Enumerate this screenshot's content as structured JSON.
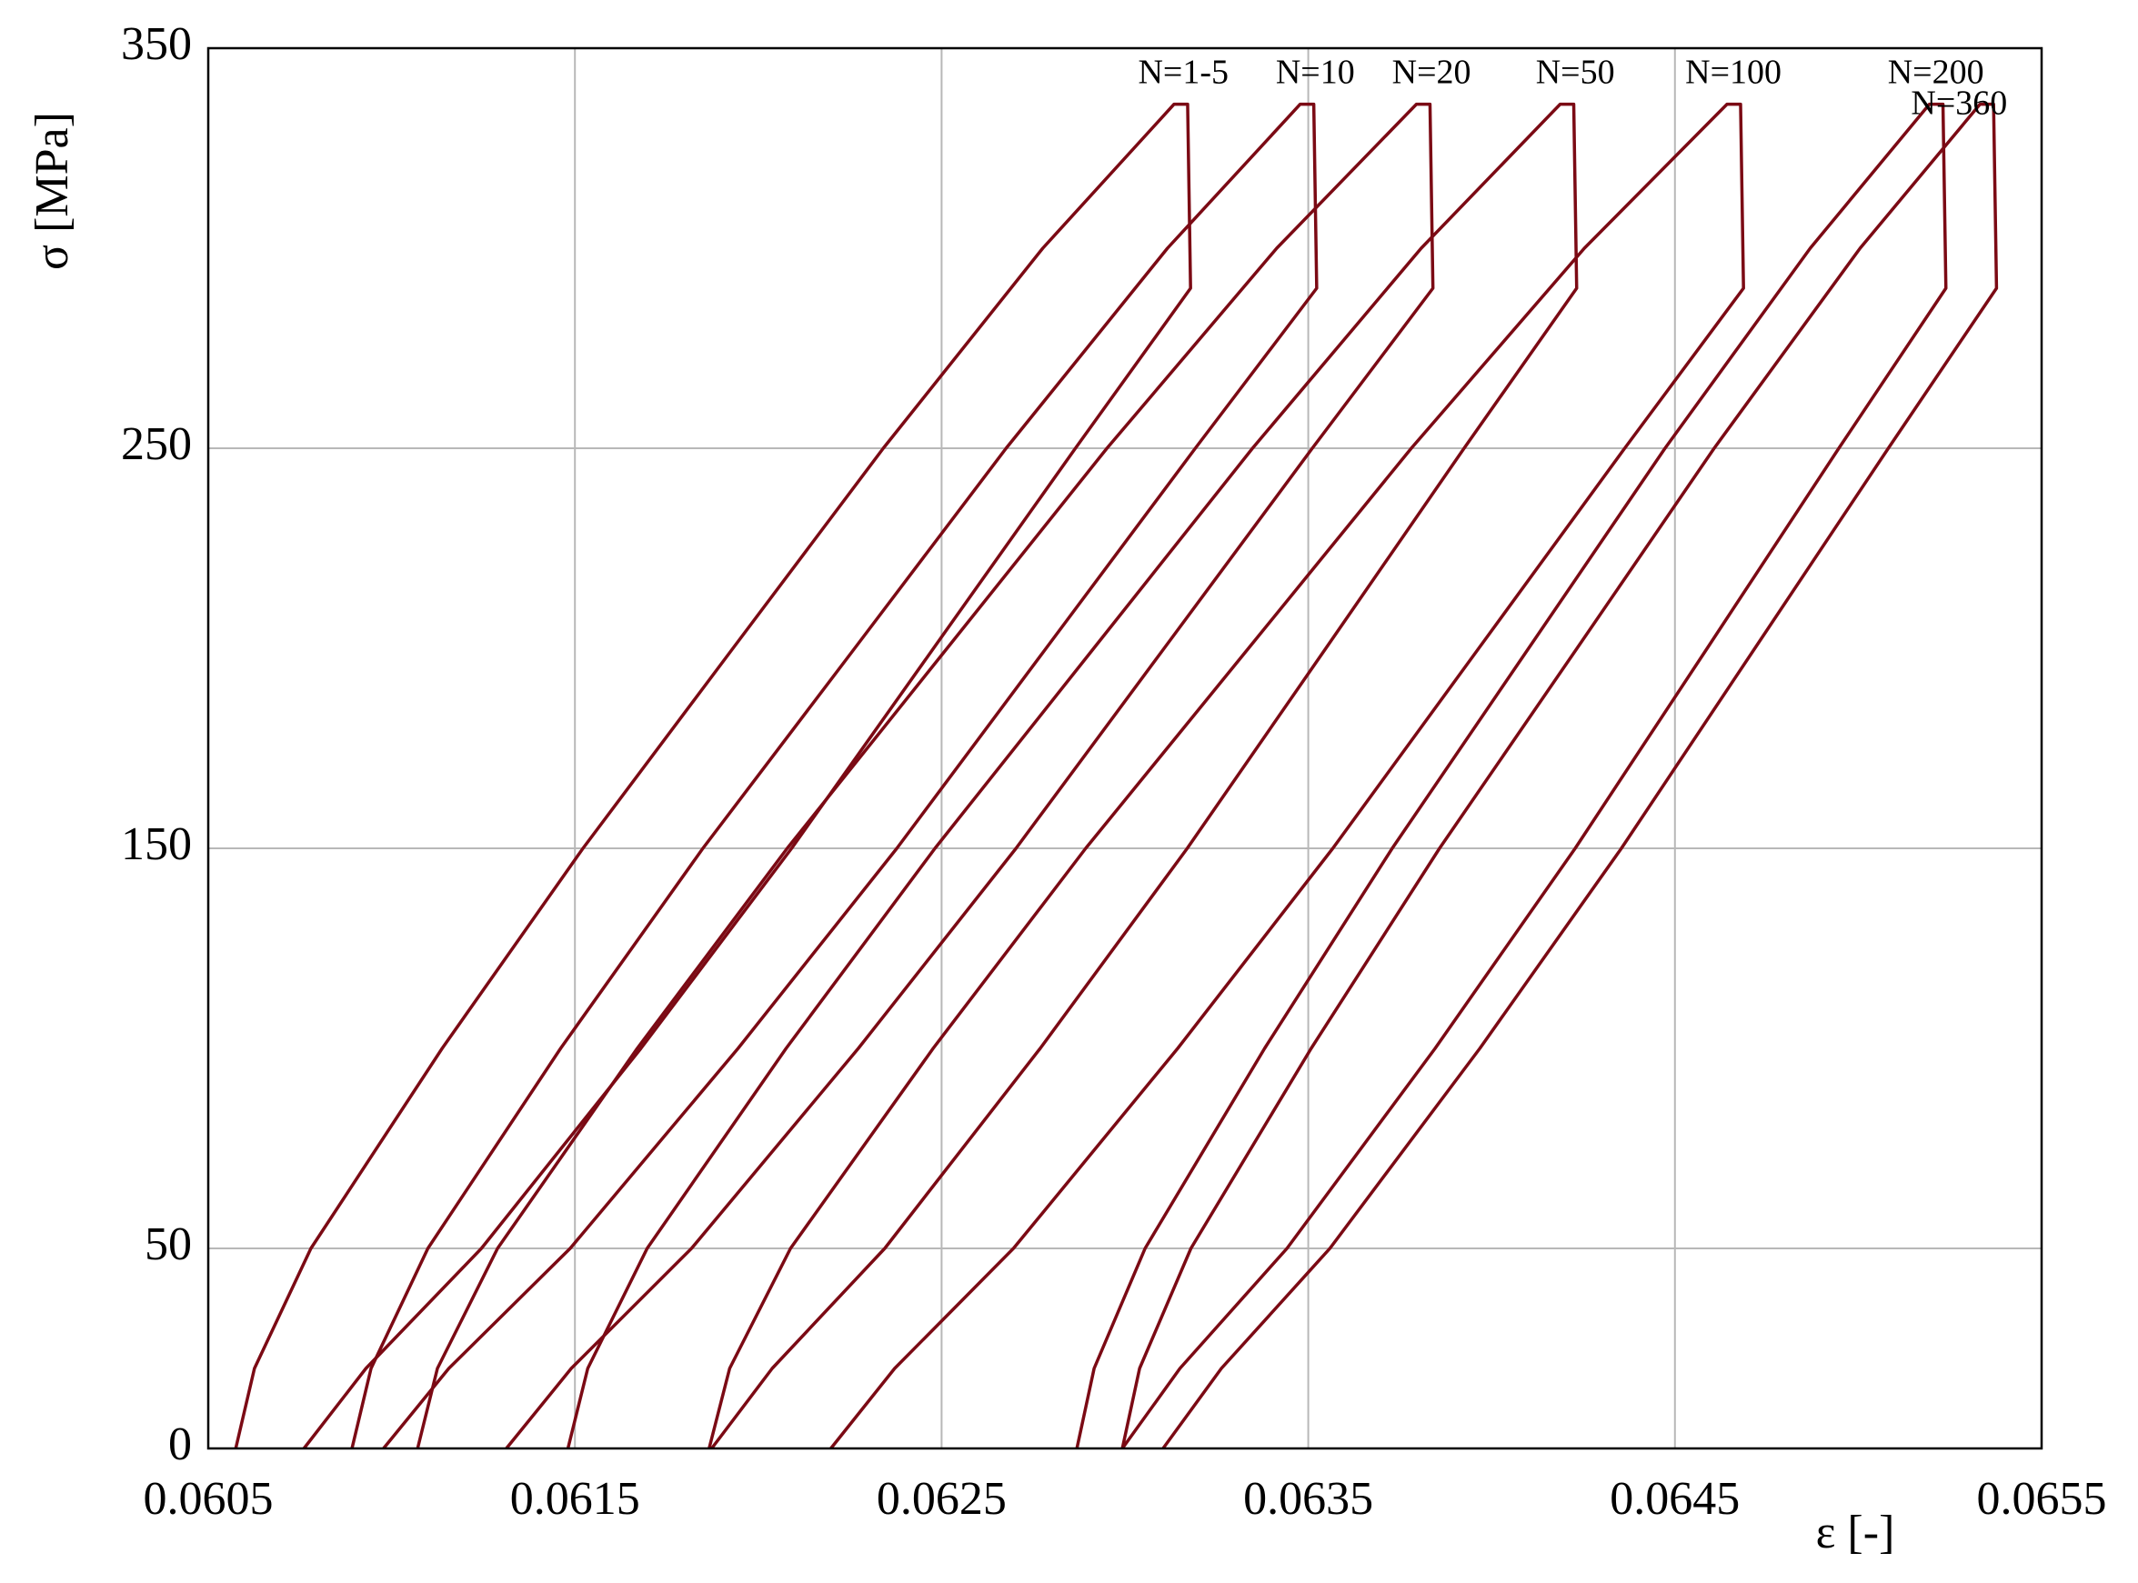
{
  "chart_data": {
    "type": "line",
    "x_label": "ε [-]",
    "y_label": "σ [MPa]",
    "xlim": [
      0.0605,
      0.0655
    ],
    "xticks": [
      0.0605,
      0.0615,
      0.0625,
      0.0635,
      0.0645,
      0.0655
    ],
    "ylim": [
      0,
      350
    ],
    "yticks": [
      0,
      50,
      150,
      250,
      350
    ],
    "grid": true,
    "series": [
      {
        "name": "N=1-5",
        "color": "#7b0a14",
        "x": [
          0.060575,
          0.060626,
          0.06078,
          0.061138,
          0.061522,
          0.061931,
          0.062341,
          0.062776,
          0.063134,
          0.063171,
          0.063179,
          0.062865,
          0.062478,
          0.062091,
          0.06168,
          0.061245,
          0.06093,
          0.060761
        ],
        "values": [
          0,
          20,
          50,
          100,
          150,
          200,
          250,
          300,
          336,
          336,
          290,
          250,
          200,
          150,
          100,
          50,
          20,
          0
        ]
      },
      {
        "name": "N=10",
        "color": "#7b0a14",
        "x": [
          0.060892,
          0.060944,
          0.061099,
          0.061461,
          0.061849,
          0.062263,
          0.062676,
          0.063116,
          0.063478,
          0.063515,
          0.063523,
          0.063192,
          0.062785,
          0.062378,
          0.061945,
          0.061487,
          0.061156,
          0.060978
        ],
        "values": [
          0,
          20,
          50,
          100,
          150,
          200,
          250,
          300,
          336,
          336,
          290,
          250,
          200,
          150,
          100,
          50,
          20,
          0
        ]
      },
      {
        "name": "N=20",
        "color": "#7b0a14",
        "x": [
          0.061071,
          0.061125,
          0.061289,
          0.06167,
          0.062079,
          0.062515,
          0.062951,
          0.063414,
          0.063795,
          0.063832,
          0.06384,
          0.063511,
          0.063107,
          0.062703,
          0.062273,
          0.061818,
          0.06149,
          0.061313
        ],
        "values": [
          0,
          20,
          50,
          100,
          150,
          200,
          250,
          300,
          336,
          336,
          290,
          250,
          200,
          150,
          100,
          50,
          20,
          0
        ]
      },
      {
        "name": "N=50",
        "color": "#7b0a14",
        "x": [
          0.061481,
          0.061535,
          0.061697,
          0.062076,
          0.062482,
          0.062915,
          0.063348,
          0.063808,
          0.064187,
          0.064224,
          0.064232,
          0.063925,
          0.063548,
          0.06317,
          0.062769,
          0.062345,
          0.062038,
          0.061873
        ],
        "values": [
          0,
          20,
          50,
          100,
          150,
          200,
          250,
          300,
          336,
          336,
          290,
          250,
          200,
          150,
          100,
          50,
          20,
          0
        ]
      },
      {
        "name": "N=100",
        "color": "#7b0a14",
        "x": [
          0.061866,
          0.061922,
          0.062088,
          0.062477,
          0.062893,
          0.063337,
          0.063781,
          0.064253,
          0.064642,
          0.064679,
          0.064687,
          0.064363,
          0.063965,
          0.063567,
          0.063144,
          0.062696,
          0.062372,
          0.062198
        ],
        "values": [
          0,
          20,
          50,
          100,
          150,
          200,
          250,
          300,
          336,
          336,
          290,
          250,
          200,
          150,
          100,
          50,
          20,
          0
        ]
      },
      {
        "name": "N=200",
        "color": "#7b0a14",
        "x": [
          0.062869,
          0.062916,
          0.063055,
          0.063381,
          0.063729,
          0.064101,
          0.064473,
          0.064869,
          0.065194,
          0.065231,
          0.065239,
          0.064947,
          0.064588,
          0.064228,
          0.063846,
          0.063442,
          0.06315,
          0.062993
        ],
        "values": [
          0,
          20,
          50,
          100,
          150,
          200,
          250,
          300,
          336,
          336,
          290,
          250,
          200,
          150,
          100,
          50,
          20,
          0
        ]
      },
      {
        "name": "N=360",
        "color": "#7b0a14",
        "x": [
          0.062993,
          0.06304,
          0.06318,
          0.063508,
          0.063858,
          0.064233,
          0.064607,
          0.065005,
          0.065332,
          0.065369,
          0.065377,
          0.065082,
          0.064718,
          0.064354,
          0.063968,
          0.063559,
          0.063263,
          0.063104
        ],
        "values": [
          0,
          20,
          50,
          100,
          150,
          200,
          250,
          300,
          336,
          336,
          290,
          250,
          200,
          150,
          100,
          50,
          20,
          0
        ]
      }
    ]
  }
}
